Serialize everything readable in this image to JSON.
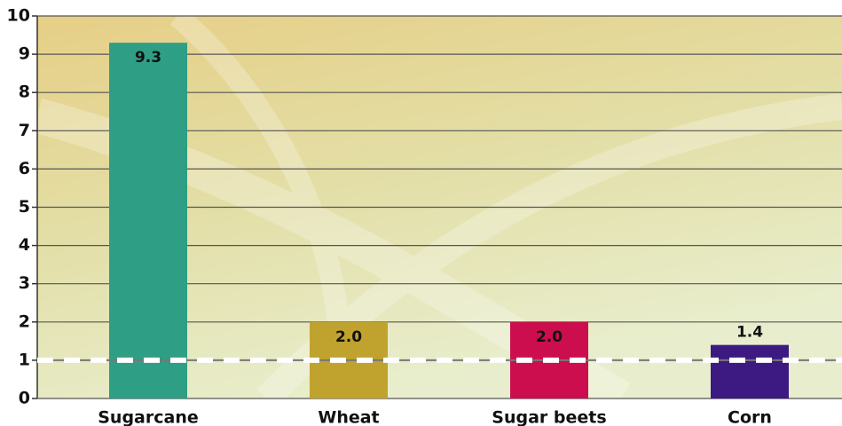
{
  "chart_data": {
    "type": "bar",
    "categories": [
      "Sugarcane",
      "Wheat",
      "Sugar beets",
      "Corn"
    ],
    "values": [
      9.3,
      2.0,
      2.0,
      1.4
    ],
    "value_labels": [
      "9.3",
      "2.0",
      "2.0",
      "1.4"
    ],
    "colors": [
      "#2e9e84",
      "#c0a22e",
      "#cc0e4e",
      "#3d1a82"
    ],
    "reference_line": 1,
    "ylim": [
      0,
      10
    ],
    "yticks": [
      0,
      1,
      2,
      3,
      4,
      5,
      6,
      7,
      8,
      9,
      10
    ],
    "grid": true
  }
}
